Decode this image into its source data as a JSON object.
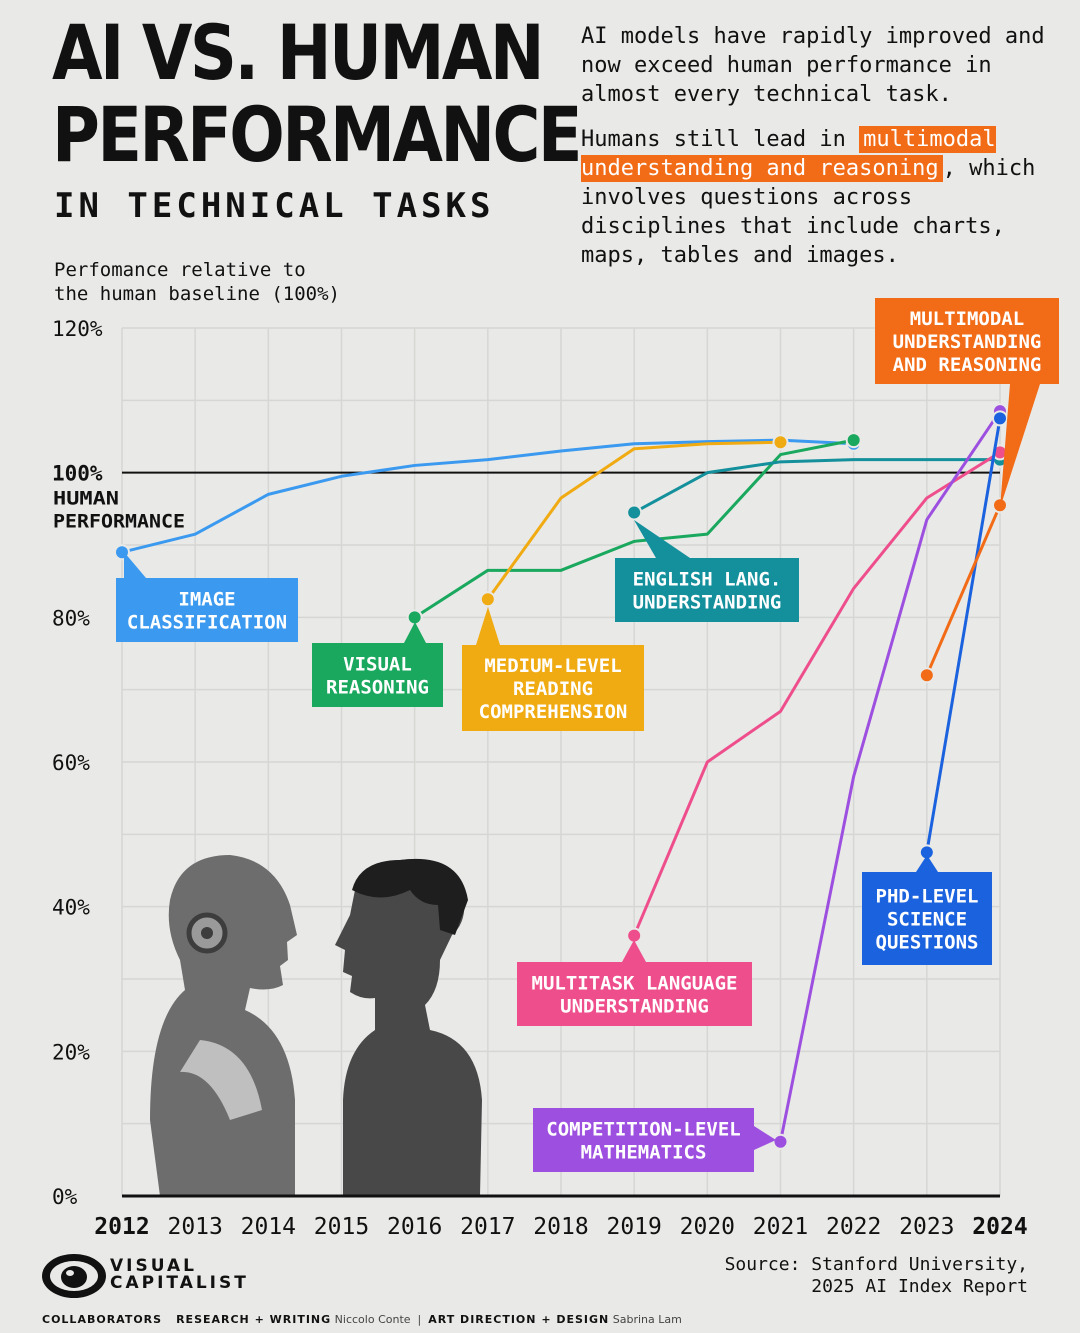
{
  "header": {
    "title_line1": "AI VS. HUMAN",
    "title_line2": "PERFORMANCE",
    "subtitle": "IN TECHNICAL TASKS"
  },
  "intro": {
    "p1": "AI models have rapidly improved and now exceed human performance in almost every technical task.",
    "p2_before": "Humans still lead in ",
    "p2_highlight": "multimodal understanding and reasoning",
    "p2_after": ", which involves questions across disciplines that include charts, maps, tables and images."
  },
  "y_axis_title": "Perfomance relative to\nthe human baseline (100%)",
  "baseline_label": [
    "100%",
    "HUMAN",
    "PERFORMANCE"
  ],
  "colors": {
    "background": "#e9e9e7",
    "grid": "#d6d6d4",
    "image_classification": "#3b9aef",
    "visual_reasoning": "#19a85e",
    "medium_reading": "#f0aa12",
    "english_lang": "#13909c",
    "multitask_language": "#ee4f8c",
    "competition_math": "#9d4fe0",
    "phd_science": "#1b62df",
    "multimodal": "#f26b16"
  },
  "chart_data": {
    "type": "line",
    "title": "AI vs. Human Performance in Technical Tasks",
    "xlabel": "",
    "ylabel": "Perfomance relative to the human baseline (100%)",
    "x_ticks": [
      2012,
      2013,
      2014,
      2015,
      2016,
      2017,
      2018,
      2019,
      2020,
      2021,
      2022,
      2023,
      2024
    ],
    "bold_ticks": [
      2012,
      2024
    ],
    "y_ticks": [
      0,
      20,
      40,
      60,
      80,
      100,
      120
    ],
    "y_tick_labels": [
      "0%",
      "20%",
      "40%",
      "60%",
      "80%",
      "100%",
      "120%"
    ],
    "xlim": [
      2012,
      2024
    ],
    "ylim": [
      0,
      120
    ],
    "baseline": 100,
    "series": [
      {
        "name": "Image Classification",
        "label": [
          "IMAGE",
          "CLASSIFICATION"
        ],
        "color_key": "image_classification",
        "points": [
          [
            2012,
            89
          ],
          [
            2013,
            91.5
          ],
          [
            2014,
            97
          ],
          [
            2015,
            99.5
          ],
          [
            2016,
            101
          ],
          [
            2017,
            101.8
          ],
          [
            2018,
            103
          ],
          [
            2019,
            104
          ],
          [
            2020,
            104.3
          ],
          [
            2021,
            104.5
          ],
          [
            2022,
            104
          ]
        ]
      },
      {
        "name": "Visual Reasoning",
        "label": [
          "VISUAL",
          "REASONING"
        ],
        "color_key": "visual_reasoning",
        "points": [
          [
            2016,
            80
          ],
          [
            2017,
            86.5
          ],
          [
            2018,
            86.5
          ],
          [
            2019,
            90.5
          ],
          [
            2020,
            91.5
          ],
          [
            2021,
            102.5
          ],
          [
            2022,
            104.5
          ]
        ]
      },
      {
        "name": "Medium-Level Reading Comprehension",
        "label": [
          "MEDIUM-LEVEL",
          "READING",
          "COMPREHENSION"
        ],
        "color_key": "medium_reading",
        "points": [
          [
            2017,
            82.5
          ],
          [
            2018,
            96.5
          ],
          [
            2019,
            103.3
          ],
          [
            2020,
            104
          ],
          [
            2021,
            104.2
          ]
        ]
      },
      {
        "name": "English Lang. Understanding",
        "label": [
          "ENGLISH LANG.",
          "UNDERSTANDING"
        ],
        "color_key": "english_lang",
        "points": [
          [
            2019,
            94.5
          ],
          [
            2020,
            100
          ],
          [
            2021,
            101.5
          ],
          [
            2022,
            101.8
          ],
          [
            2023,
            101.8
          ],
          [
            2024,
            101.8
          ]
        ]
      },
      {
        "name": "Multitask Language Understanding",
        "label": [
          "MULTITASK LANGUAGE",
          "UNDERSTANDING"
        ],
        "color_key": "multitask_language",
        "points": [
          [
            2019,
            36
          ],
          [
            2020,
            60
          ],
          [
            2021,
            67
          ],
          [
            2022,
            84
          ],
          [
            2023,
            96.5
          ],
          [
            2024,
            102.8
          ]
        ]
      },
      {
        "name": "Competition-Level Mathematics",
        "label": [
          "COMPETITION-LEVEL",
          "MATHEMATICS"
        ],
        "color_key": "competition_math",
        "points": [
          [
            2021,
            7.5
          ],
          [
            2022,
            58
          ],
          [
            2023,
            93.5
          ],
          [
            2024,
            108.5
          ]
        ]
      },
      {
        "name": "PhD-Level Science Questions",
        "label": [
          "PHD-LEVEL",
          "SCIENCE",
          "QUESTIONS"
        ],
        "color_key": "phd_science",
        "points": [
          [
            2023,
            47.5
          ],
          [
            2024,
            107.5
          ]
        ]
      },
      {
        "name": "Multimodal Understanding and Reasoning",
        "label": [
          "MULTIMODAL",
          "UNDERSTANDING",
          "AND REASONING"
        ],
        "color_key": "multimodal",
        "points": [
          [
            2023,
            72
          ],
          [
            2024,
            95.5
          ]
        ]
      }
    ]
  },
  "footer": {
    "brand_line1": "VISUAL",
    "brand_line2": "CAPITALIST",
    "source_line1": "Source: Stanford University,",
    "source_line2": "2025 AI Index Report",
    "collaborators": "COLLABORATORS",
    "research_role": "RESEARCH + WRITING",
    "research_name": "Niccolo Conte",
    "design_role": "ART DIRECTION + DESIGN",
    "design_name": "Sabrina Lam"
  }
}
